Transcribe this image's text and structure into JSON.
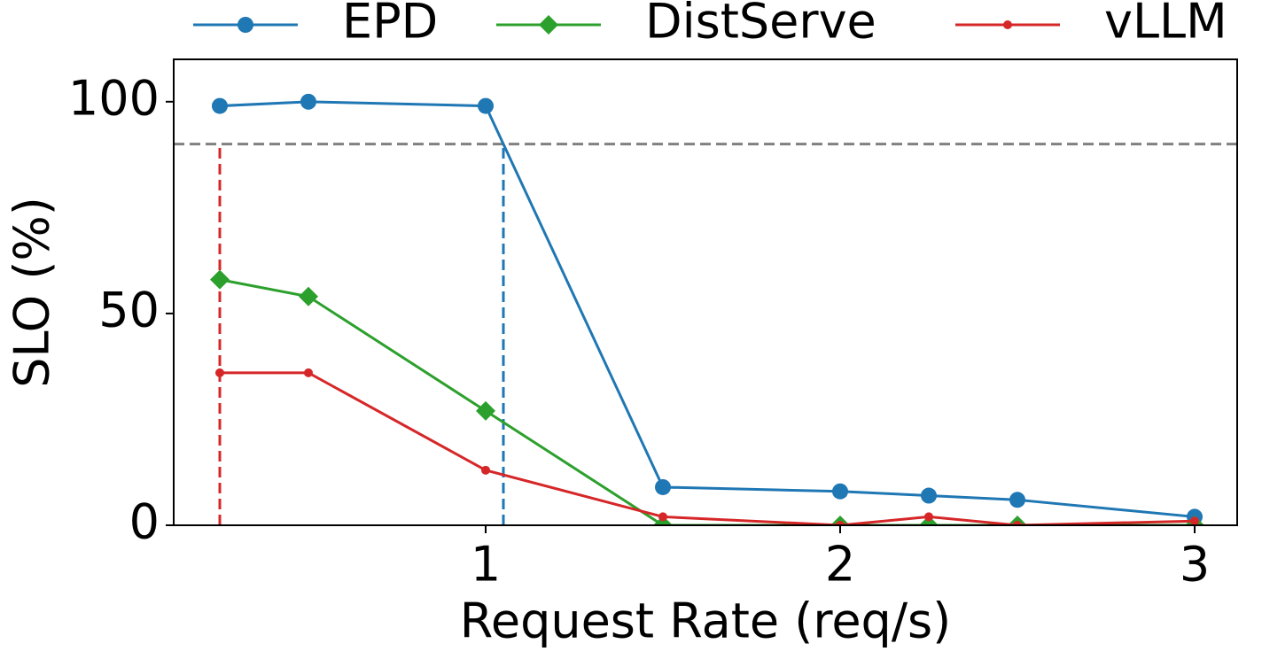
{
  "chart_data": {
    "type": "line",
    "x_label": "Request Rate (req/s)",
    "y_label": "SLO (%)",
    "x": [
      0.25,
      0.5,
      1,
      1.5,
      2,
      2.25,
      2.5,
      3
    ],
    "series": [
      {
        "name": "EPD",
        "color": "#1f77b4",
        "marker": "circle",
        "values": [
          99,
          100,
          99,
          9,
          8,
          7,
          6,
          2
        ]
      },
      {
        "name": "DistServe",
        "color": "#2ca02c",
        "marker": "diamond",
        "values": [
          58,
          54,
          27,
          0,
          0,
          0,
          0,
          0
        ]
      },
      {
        "name": "vLLM",
        "color": "#d62728",
        "marker": "point",
        "values": [
          36,
          36,
          13,
          2,
          0,
          2,
          0,
          1
        ]
      }
    ],
    "xlim": [
      0.12,
      3.12
    ],
    "ylim": [
      0,
      110
    ],
    "xticks": [
      1,
      2,
      3
    ],
    "yticks": [
      0,
      50,
      100
    ],
    "hlines": [
      {
        "y": 90,
        "color": "#808080"
      }
    ],
    "vlines": [
      {
        "x": 0.25,
        "ymax": 90,
        "color": "#d62728"
      },
      {
        "x": 1.05,
        "ymax": 90,
        "color": "#1f77b4"
      }
    ],
    "legend": "top"
  }
}
